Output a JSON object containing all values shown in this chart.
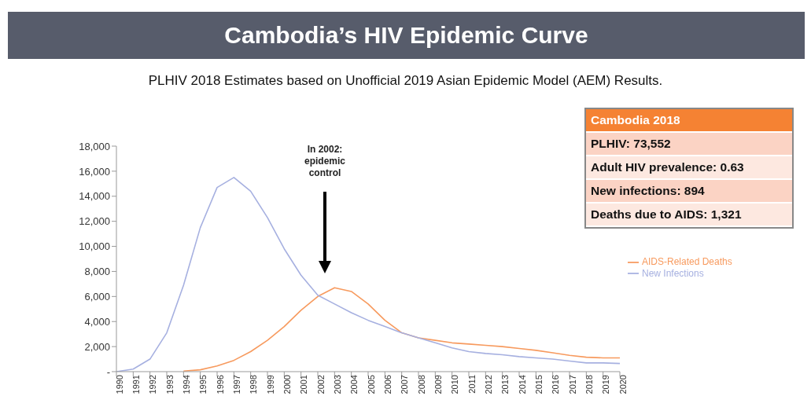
{
  "chart_data": {
    "type": "line",
    "title": "Cambodia’s HIV Epidemic Curve",
    "subtitle": "PLHIV 2018 Estimates based on Unofficial 2019 Asian Epidemic Model (AEM) Results.",
    "categories": [
      "1990",
      "1991",
      "1992",
      "1993",
      "1994",
      "1995",
      "1996",
      "1997",
      "1998",
      "1999",
      "2000",
      "2001",
      "2002",
      "2003",
      "2004",
      "2005",
      "2006",
      "2007",
      "2008",
      "2009",
      "2010",
      "2011",
      "2012",
      "2013",
      "2014",
      "2015",
      "2016",
      "2017",
      "2018",
      "2019",
      "2020"
    ],
    "series": [
      {
        "name": "AIDS-Related Deaths",
        "color": "#f79a5e",
        "values": [
          null,
          null,
          null,
          null,
          50,
          150,
          450,
          900,
          1600,
          2500,
          3600,
          4900,
          6000,
          6700,
          6400,
          5400,
          4100,
          3100,
          2700,
          2500,
          2300,
          2200,
          2100,
          2000,
          1850,
          1700,
          1500,
          1300,
          1150,
          1100,
          1100
        ]
      },
      {
        "name": "New Infections",
        "color": "#a6b0e0",
        "values": [
          0,
          200,
          1000,
          3100,
          6900,
          11500,
          14700,
          15500,
          14400,
          12300,
          9800,
          7700,
          6100,
          5400,
          4700,
          4100,
          3600,
          3100,
          2700,
          2300,
          1900,
          1600,
          1450,
          1350,
          1200,
          1100,
          1000,
          850,
          700,
          700,
          650
        ]
      }
    ],
    "ylim": [
      0,
      18000
    ],
    "yticks": [
      {
        "value": 0,
        "label": "-"
      },
      {
        "value": 2000,
        "label": "2,000"
      },
      {
        "value": 4000,
        "label": "4,000"
      },
      {
        "value": 6000,
        "label": "6,000"
      },
      {
        "value": 8000,
        "label": "8,000"
      },
      {
        "value": 10000,
        "label": "10,000"
      },
      {
        "value": 12000,
        "label": "12,000"
      },
      {
        "value": 14000,
        "label": "14,000"
      },
      {
        "value": 16000,
        "label": "16,000"
      },
      {
        "value": 18000,
        "label": "18,000"
      }
    ],
    "grid": false,
    "legend": "right",
    "marker": "none",
    "line_style": "solid",
    "annotations": [
      "In 2002: epidemic control",
      "Cambodia 2018",
      "PLHIV: 73,552",
      "Adult HIV prevalence: 0.63",
      "New infections: 894",
      "Deaths due to AIDS: 1,321"
    ]
  }
}
